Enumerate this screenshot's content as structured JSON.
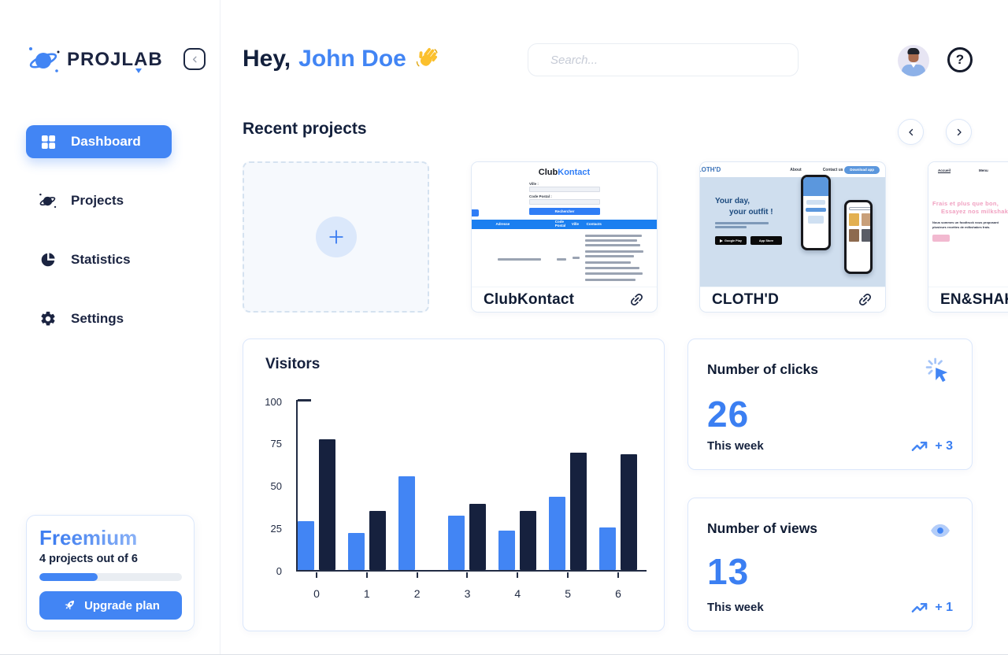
{
  "colors": {
    "primary_blue": "#4285f4",
    "dark_navy": "#16213e",
    "freemium_gradient_start": "#3f7ef0",
    "freemium_gradient_end": "#abc8f9",
    "pink_accent": "#f0a0c0"
  },
  "sidebar": {
    "logo_text": "PROJLAB",
    "nav": [
      {
        "label": "Dashboard",
        "icon": "grid-icon",
        "active": true
      },
      {
        "label": "Projects",
        "icon": "planet-icon",
        "active": false
      },
      {
        "label": "Statistics",
        "icon": "pie-chart-icon",
        "active": false
      },
      {
        "label": "Settings",
        "icon": "gear-icon",
        "active": false
      }
    ],
    "plan": {
      "name": "Freemium",
      "usage": "4 projects out of 6",
      "progress_pct": 41,
      "upgrade_label": "Upgrade plan",
      "upgrade_icon": "rocket-icon"
    }
  },
  "header": {
    "greeting_prefix": "Hey,",
    "user_name": "John Doe",
    "wave_icon": "waving-hand-icon",
    "search_placeholder": "Search...",
    "help_glyph": "?"
  },
  "recent": {
    "title": "Recent projects",
    "controls": [
      "chevron-left-icon",
      "chevron-right-icon"
    ],
    "add_card_icon": "plus-icon",
    "projects": [
      {
        "name": "ClubKontact",
        "link_icon": "link-icon"
      },
      {
        "name": "CLOTH'D",
        "link_icon": "link-icon"
      },
      {
        "name": "EN&SHAKE",
        "link_icon": "link-icon"
      }
    ]
  },
  "thumbs": {
    "clubkontact": {
      "brand_dark": "Club",
      "brand_blue": "Kontact",
      "label_city": "Ville :",
      "label_zip": "Code Postal :",
      "search_button": "Rechercher",
      "cols": [
        "",
        "Adresse",
        "Code Postal",
        "Ville",
        "Contacts"
      ]
    },
    "clothd": {
      "logo": "CLOTH'D",
      "nav_about": "About",
      "nav_contact": "Contact us",
      "cta": "Download app",
      "hero_1": "Your day,",
      "hero_2": "your outfit !",
      "badge_play": "Google Play",
      "badge_store": "App Store"
    },
    "enshake": {
      "nav_home": "Accueil",
      "nav_menu": "Menu",
      "headline_1": "Frais et plus que bon,",
      "headline_2": "Essayez nos milkshake !",
      "body_text": "Nous sommes un foodtruck vous proposant plusieurs recettes de milkshakes frais."
    }
  },
  "chart_data": {
    "type": "bar",
    "title": "Visitors",
    "categories": [
      "0",
      "1",
      "2",
      "3",
      "4",
      "5",
      "6"
    ],
    "series": [
      {
        "name": "series-1",
        "color": "#4285f4",
        "values": [
          29,
          22,
          55,
          32,
          23,
          43,
          25
        ]
      },
      {
        "name": "series-2",
        "color": "#16213e",
        "values": [
          77,
          35,
          0,
          39,
          35,
          69,
          68
        ]
      }
    ],
    "xlabel": "",
    "ylabel": "",
    "ylim": [
      0,
      100
    ],
    "yticks": [
      0,
      25,
      50,
      75,
      100
    ],
    "grid": false,
    "legend": false
  },
  "stats": {
    "clicks": {
      "title": "Number of clicks",
      "icon": "cursor-click-icon",
      "value": "26",
      "period": "This week",
      "trend_icon": "trending-up-icon",
      "delta": "+ 3"
    },
    "views": {
      "title": "Number of views",
      "icon": "eye-icon",
      "value": "13",
      "period": "This week",
      "trend_icon": "trending-up-icon",
      "delta": "+ 1"
    }
  }
}
